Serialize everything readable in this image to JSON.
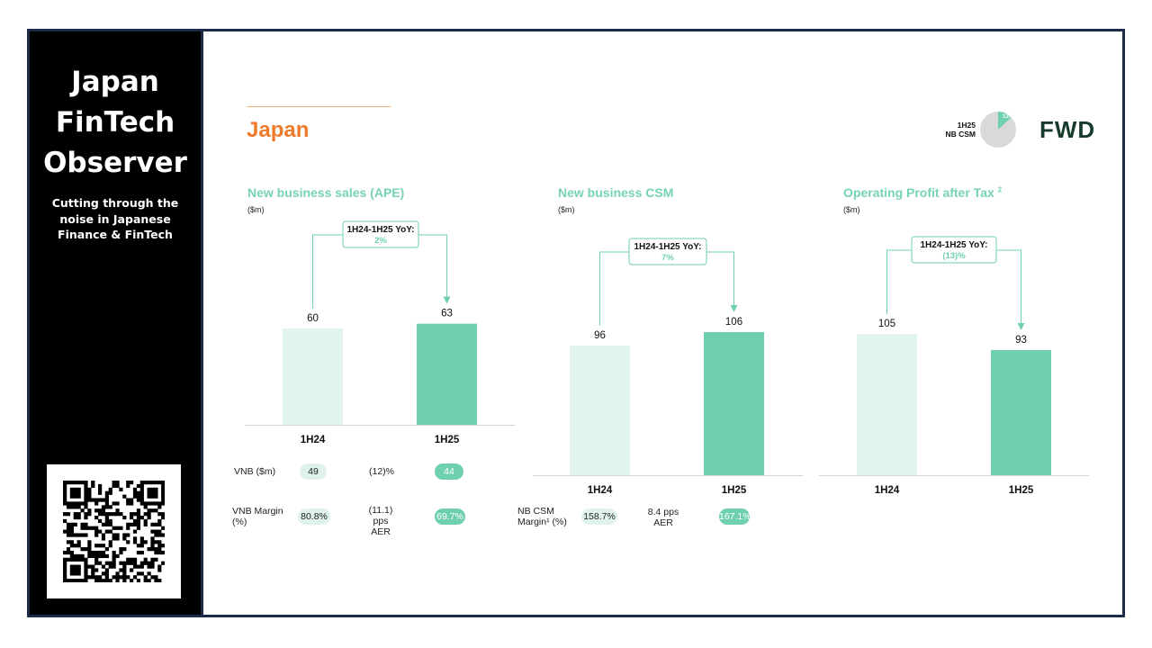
{
  "sidebar": {
    "title_lines": [
      "Japan",
      "FinTech",
      "Observer"
    ],
    "subtitle_lines": [
      "Cutting through the",
      "noise in Japanese",
      "Finance & FinTech"
    ]
  },
  "header": {
    "title": "Japan",
    "pie_label_lines": [
      "1H25",
      "NB CSM"
    ],
    "pie_share_text": "13%",
    "pie_share_value": 13,
    "logo": "FWD"
  },
  "colors": {
    "bar_prior": "#e2f4ee",
    "bar_current": "#6fcfb1",
    "accent_orange": "#ee7a2a",
    "panel_title": "#77d2b6"
  },
  "chart_data": [
    {
      "type": "bar",
      "title": "New business sales (APE)",
      "unit": "($m)",
      "categories": [
        "1H24",
        "1H25"
      ],
      "values": [
        60,
        63
      ],
      "value_labels": [
        "60",
        "63"
      ],
      "yoy_label": "1H24-1H25 YoY:",
      "yoy_value": "2%"
    },
    {
      "type": "bar",
      "title": "New business CSM",
      "unit": "($m)",
      "categories": [
        "1H24",
        "1H25"
      ],
      "values": [
        96,
        106
      ],
      "value_labels": [
        "96",
        "106"
      ],
      "yoy_label": "1H24-1H25 YoY:",
      "yoy_value": "7%"
    },
    {
      "type": "bar",
      "title": "Operating Profit after Tax",
      "title_sup": "2",
      "unit": "($m)",
      "categories": [
        "1H24",
        "1H25"
      ],
      "values": [
        105,
        93
      ],
      "value_labels": [
        "105",
        "93"
      ],
      "yoy_label": "1H24-1H25 YoY:",
      "yoy_value": "(13)%"
    }
  ],
  "metrics": {
    "vnb": {
      "label": "VNB ($m)",
      "prior": "49",
      "change": "(12)%",
      "current": "44"
    },
    "vnb_margin": {
      "label_lines": [
        "VNB Margin",
        "(%)"
      ],
      "prior": "80.8%",
      "change_lines": [
        "(11.1) pps",
        "AER"
      ],
      "current": "69.7%"
    },
    "nb_csm_margin": {
      "label_lines": [
        "NB CSM",
        "Margin¹ (%)"
      ],
      "prior": "158.7%",
      "change_lines": [
        "8.4 pps",
        "AER"
      ],
      "current": "167.1%"
    }
  }
}
